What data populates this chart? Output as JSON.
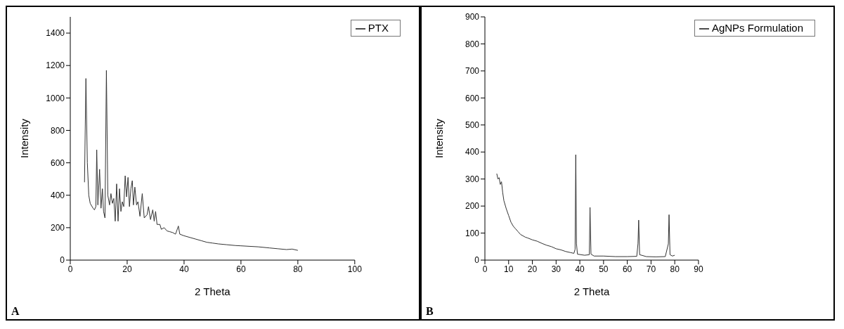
{
  "chart_data": [
    {
      "type": "line",
      "xlabel": "2 Theta",
      "ylabel": "Intensity",
      "xlim": [
        0,
        100
      ],
      "xticks": [
        0,
        20,
        40,
        60,
        80,
        100
      ],
      "ylim": [
        0,
        1500
      ],
      "yticks": [
        0,
        200,
        400,
        600,
        800,
        1000,
        1200,
        1400
      ],
      "legend": "top right",
      "annotations": [
        "A"
      ],
      "series": [
        {
          "name": "PTX",
          "color": "#333333",
          "x": [
            5,
            5.5,
            6,
            6.5,
            7,
            8,
            8.5,
            9,
            9.3,
            9.7,
            10.3,
            10.8,
            11.3,
            11.7,
            12.2,
            12.7,
            13.2,
            13.8,
            14.3,
            14.8,
            15.3,
            15.8,
            16.3,
            16.8,
            17.3,
            17.8,
            18.3,
            18.8,
            19.3,
            19.8,
            20.3,
            20.8,
            21.3,
            21.8,
            22.2,
            22.7,
            23.3,
            23.8,
            24.5,
            25.3,
            26,
            27,
            27.5,
            28.2,
            29,
            29.5,
            30,
            30.5,
            31.5,
            32,
            33,
            34,
            35,
            36,
            37,
            38,
            38.5,
            40,
            42,
            44,
            46,
            48,
            50,
            52,
            55,
            58,
            60,
            63,
            66,
            70,
            73,
            76,
            78,
            80
          ],
          "values": [
            480,
            1120,
            600,
            400,
            350,
            320,
            310,
            330,
            680,
            340,
            560,
            320,
            440,
            300,
            260,
            1170,
            400,
            340,
            410,
            350,
            380,
            240,
            470,
            240,
            440,
            300,
            360,
            330,
            520,
            390,
            510,
            330,
            440,
            490,
            340,
            450,
            340,
            360,
            270,
            410,
            260,
            280,
            330,
            250,
            310,
            240,
            300,
            220,
            220,
            190,
            200,
            180,
            175,
            170,
            160,
            210,
            160,
            150,
            140,
            130,
            120,
            110,
            105,
            100,
            95,
            90,
            88,
            85,
            82,
            75,
            70,
            65,
            68,
            60
          ]
        }
      ]
    },
    {
      "type": "line",
      "xlabel": "2 Theta",
      "ylabel": "Intensity",
      "xlim": [
        0,
        90
      ],
      "xticks": [
        0,
        10,
        20,
        30,
        40,
        50,
        60,
        70,
        80,
        90
      ],
      "ylim": [
        0,
        900
      ],
      "yticks": [
        0,
        100,
        200,
        300,
        400,
        500,
        600,
        700,
        800,
        900
      ],
      "legend": "top right",
      "annotations": [
        "B"
      ],
      "series": [
        {
          "name": "AgNPs Formulation",
          "color": "#333333",
          "x": [
            5,
            5.5,
            6,
            6.5,
            7,
            7.5,
            8,
            9,
            10,
            11,
            12,
            13,
            14,
            15,
            16,
            17,
            18,
            20,
            22,
            24,
            26,
            28,
            30,
            32,
            34,
            36,
            37.5,
            38,
            38.3,
            38.6,
            39,
            42,
            44,
            44.3,
            44.7,
            46,
            50,
            55,
            60,
            64,
            64.5,
            64.8,
            65.2,
            68,
            72,
            76,
            77.3,
            77.6,
            78,
            79,
            80
          ],
          "values": [
            320,
            300,
            305,
            280,
            290,
            250,
            220,
            190,
            165,
            140,
            125,
            115,
            105,
            95,
            90,
            85,
            82,
            75,
            70,
            62,
            55,
            50,
            42,
            38,
            32,
            28,
            25,
            40,
            390,
            60,
            22,
            18,
            20,
            195,
            22,
            15,
            15,
            13,
            13,
            14,
            60,
            148,
            20,
            13,
            12,
            13,
            60,
            168,
            20,
            15,
            18
          ]
        }
      ]
    }
  ]
}
